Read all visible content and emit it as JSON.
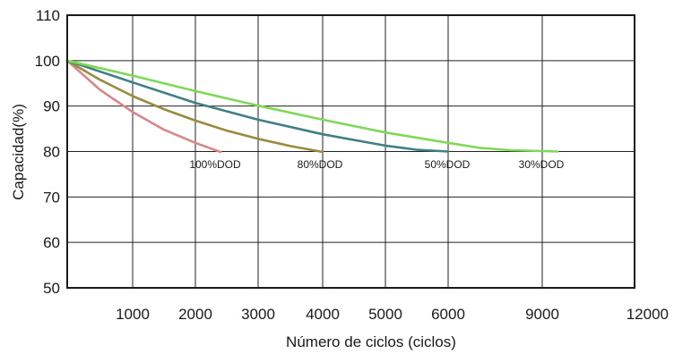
{
  "chart_data": {
    "type": "line",
    "xlabel": "Número de ciclos (ciclos)",
    "ylabel": "Capacidad(%)",
    "ylim": [
      50,
      110
    ],
    "y_ticks": [
      50,
      60,
      70,
      80,
      90,
      100,
      110
    ],
    "x_tick_labels": [
      "1000",
      "2000",
      "3000",
      "4000",
      "5000",
      "6000",
      "9000",
      "12000"
    ],
    "x_axis_note": "non-linear axis: ticks are category positions",
    "grid": true,
    "legend": "none (labels placed under curve ends)",
    "series": [
      {
        "name": "100%DOD",
        "color": "#d9868a",
        "points": [
          [
            0,
            100
          ],
          [
            500,
            93.6
          ],
          [
            1000,
            88.7
          ],
          [
            1500,
            84.8
          ],
          [
            2000,
            81.9
          ],
          [
            2400,
            79.9
          ]
        ]
      },
      {
        "name": "80%DOD",
        "color": "#9a8a3e",
        "points": [
          [
            0,
            100
          ],
          [
            500,
            95.8
          ],
          [
            1000,
            92.2
          ],
          [
            1500,
            89.3
          ],
          [
            2000,
            86.8
          ],
          [
            2500,
            84.6
          ],
          [
            3000,
            82.8
          ],
          [
            3500,
            81.2
          ],
          [
            4000,
            79.9
          ]
        ]
      },
      {
        "name": "50%DOD",
        "color": "#3f7f85",
        "points": [
          [
            0,
            100
          ],
          [
            1000,
            95.2
          ],
          [
            2000,
            90.7
          ],
          [
            3000,
            87.0
          ],
          [
            4000,
            83.8
          ],
          [
            5000,
            81.3
          ],
          [
            5500,
            80.4
          ],
          [
            6000,
            80.0
          ]
        ]
      },
      {
        "name": "30%DOD",
        "color": "#7ed957",
        "points": [
          [
            0,
            100
          ],
          [
            1000,
            96.7
          ],
          [
            2000,
            93.3
          ],
          [
            3000,
            90.1
          ],
          [
            4000,
            87.0
          ],
          [
            5000,
            84.2
          ],
          [
            6000,
            81.9
          ],
          [
            7000,
            80.8
          ],
          [
            8000,
            80.3
          ],
          [
            9000,
            80.1
          ],
          [
            9500,
            80.0
          ]
        ]
      }
    ]
  }
}
